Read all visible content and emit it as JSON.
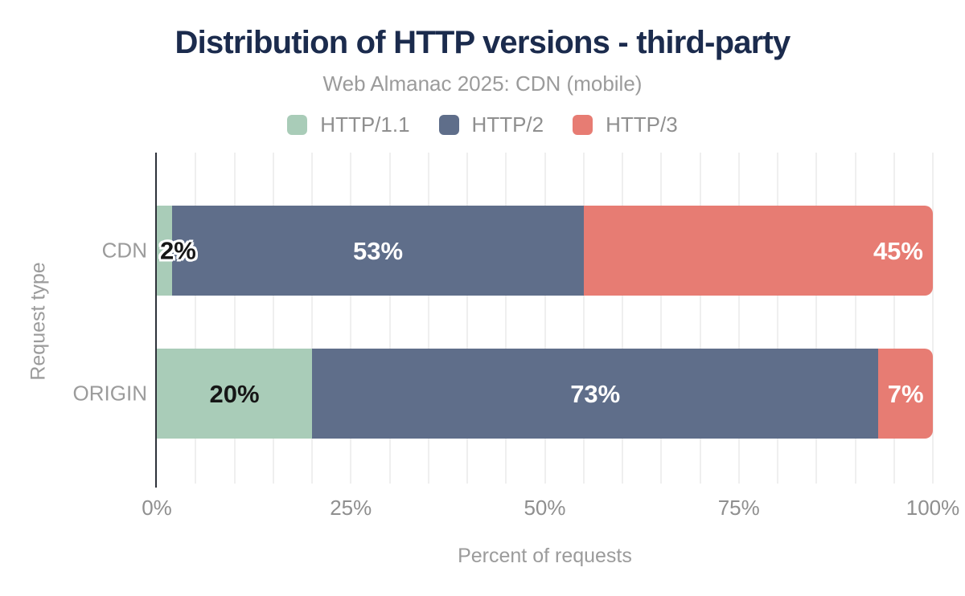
{
  "page": {
    "background": "#ffffff"
  },
  "colors": {
    "title_text": "#1b2b4d",
    "muted_text": "#9b9b9b",
    "tick_text": "#8f8f8f",
    "axis_line": "#2e323a",
    "gridline": "#efefef",
    "label_light": "#ffffff",
    "label_dark": "#161616"
  },
  "chart_data": {
    "type": "bar",
    "variant": "horizontal-stacked",
    "title": "Distribution of HTTP versions - third-party",
    "subtitle": "Web Almanac 2025: CDN (mobile)",
    "xlabel": "Percent of requests",
    "ylabel": "Request type",
    "categories": [
      "CDN",
      "ORIGIN"
    ],
    "series": [
      {
        "name": "HTTP/1.1",
        "color": "#a9ccb8",
        "values": [
          2,
          20
        ]
      },
      {
        "name": "HTTP/2",
        "color": "#5f6e8a",
        "values": [
          53,
          73
        ]
      },
      {
        "name": "HTTP/3",
        "color": "#e77c73",
        "values": [
          45,
          7
        ]
      }
    ],
    "bars": [
      {
        "category": "CDN",
        "segments": [
          {
            "series": "HTTP/1.1",
            "value": 2,
            "label": "2%",
            "label_style": "dark-outlined",
            "label_align": "overflow-start"
          },
          {
            "series": "HTTP/2",
            "value": 53,
            "label": "53%",
            "label_style": "light",
            "label_align": "center"
          },
          {
            "series": "HTTP/3",
            "value": 45,
            "label": "45%",
            "label_style": "light",
            "label_align": "end"
          }
        ]
      },
      {
        "category": "ORIGIN",
        "segments": [
          {
            "series": "HTTP/1.1",
            "value": 20,
            "label": "20%",
            "label_style": "dark",
            "label_align": "center"
          },
          {
            "series": "HTTP/2",
            "value": 73,
            "label": "73%",
            "label_style": "light",
            "label_align": "center"
          },
          {
            "series": "HTTP/3",
            "value": 7,
            "label": "7%",
            "label_style": "light",
            "label_align": "center"
          }
        ]
      }
    ],
    "xlim": [
      0,
      100
    ],
    "xticks": [
      {
        "value": 0,
        "label": "0%"
      },
      {
        "value": 25,
        "label": "25%"
      },
      {
        "value": 50,
        "label": "50%"
      },
      {
        "value": 75,
        "label": "75%"
      },
      {
        "value": 100,
        "label": "100%"
      }
    ],
    "grid": {
      "show": true,
      "axis": "x",
      "step_percent": 5
    },
    "legend_position": "top"
  }
}
